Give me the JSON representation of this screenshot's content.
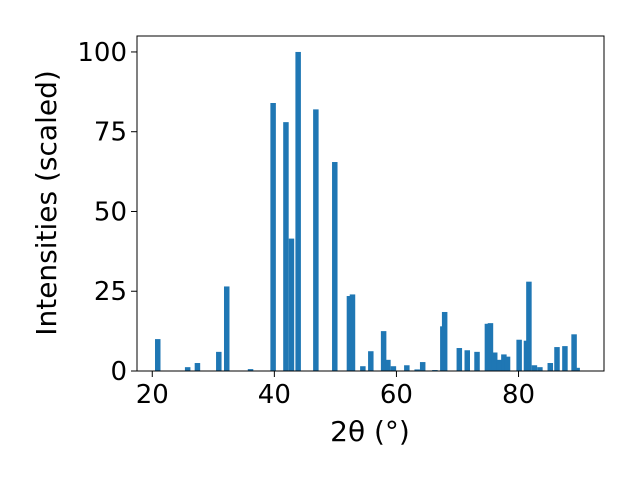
{
  "chart_data": {
    "type": "bar",
    "xlabel": "2θ (°)",
    "ylabel": "Intensities (scaled)",
    "xlim": [
      17.5,
      94.0
    ],
    "ylim": [
      0,
      105
    ],
    "x_ticks": [
      20,
      40,
      60,
      80
    ],
    "y_ticks": [
      0,
      25,
      50,
      75,
      100
    ],
    "bar_width": 0.9,
    "bar_color": "#1f77b4",
    "grid": false,
    "x": [
      20.9,
      25.8,
      27.4,
      30.9,
      32.2,
      36.1,
      39.8,
      41.9,
      42.8,
      43.9,
      46.8,
      49.9,
      52.3,
      52.8,
      54.5,
      55.8,
      57.9,
      58.6,
      59.5,
      61.7,
      63.4,
      64.3,
      66.3,
      67.6,
      67.9,
      70.3,
      71.6,
      73.2,
      74.9,
      75.4,
      76.1,
      76.8,
      77.6,
      78.2,
      80.1,
      81.3,
      81.7,
      82.6,
      83.5,
      85.2,
      86.3,
      87.6,
      89.1,
      89.6
    ],
    "values": [
      10,
      1.2,
      2.5,
      6,
      26.5,
      0.6,
      84,
      78,
      41.5,
      100,
      82,
      65.5,
      23.5,
      24,
      1.5,
      6.2,
      12.5,
      3.5,
      1.5,
      1.8,
      0.5,
      2.8,
      0.3,
      14,
      18.5,
      7.2,
      6.5,
      6,
      14.8,
      15,
      5.8,
      3.5,
      5.2,
      4.5,
      9.8,
      9.5,
      28,
      1.8,
      1.2,
      2.5,
      7.5,
      7.8,
      11.5,
      1
    ]
  }
}
